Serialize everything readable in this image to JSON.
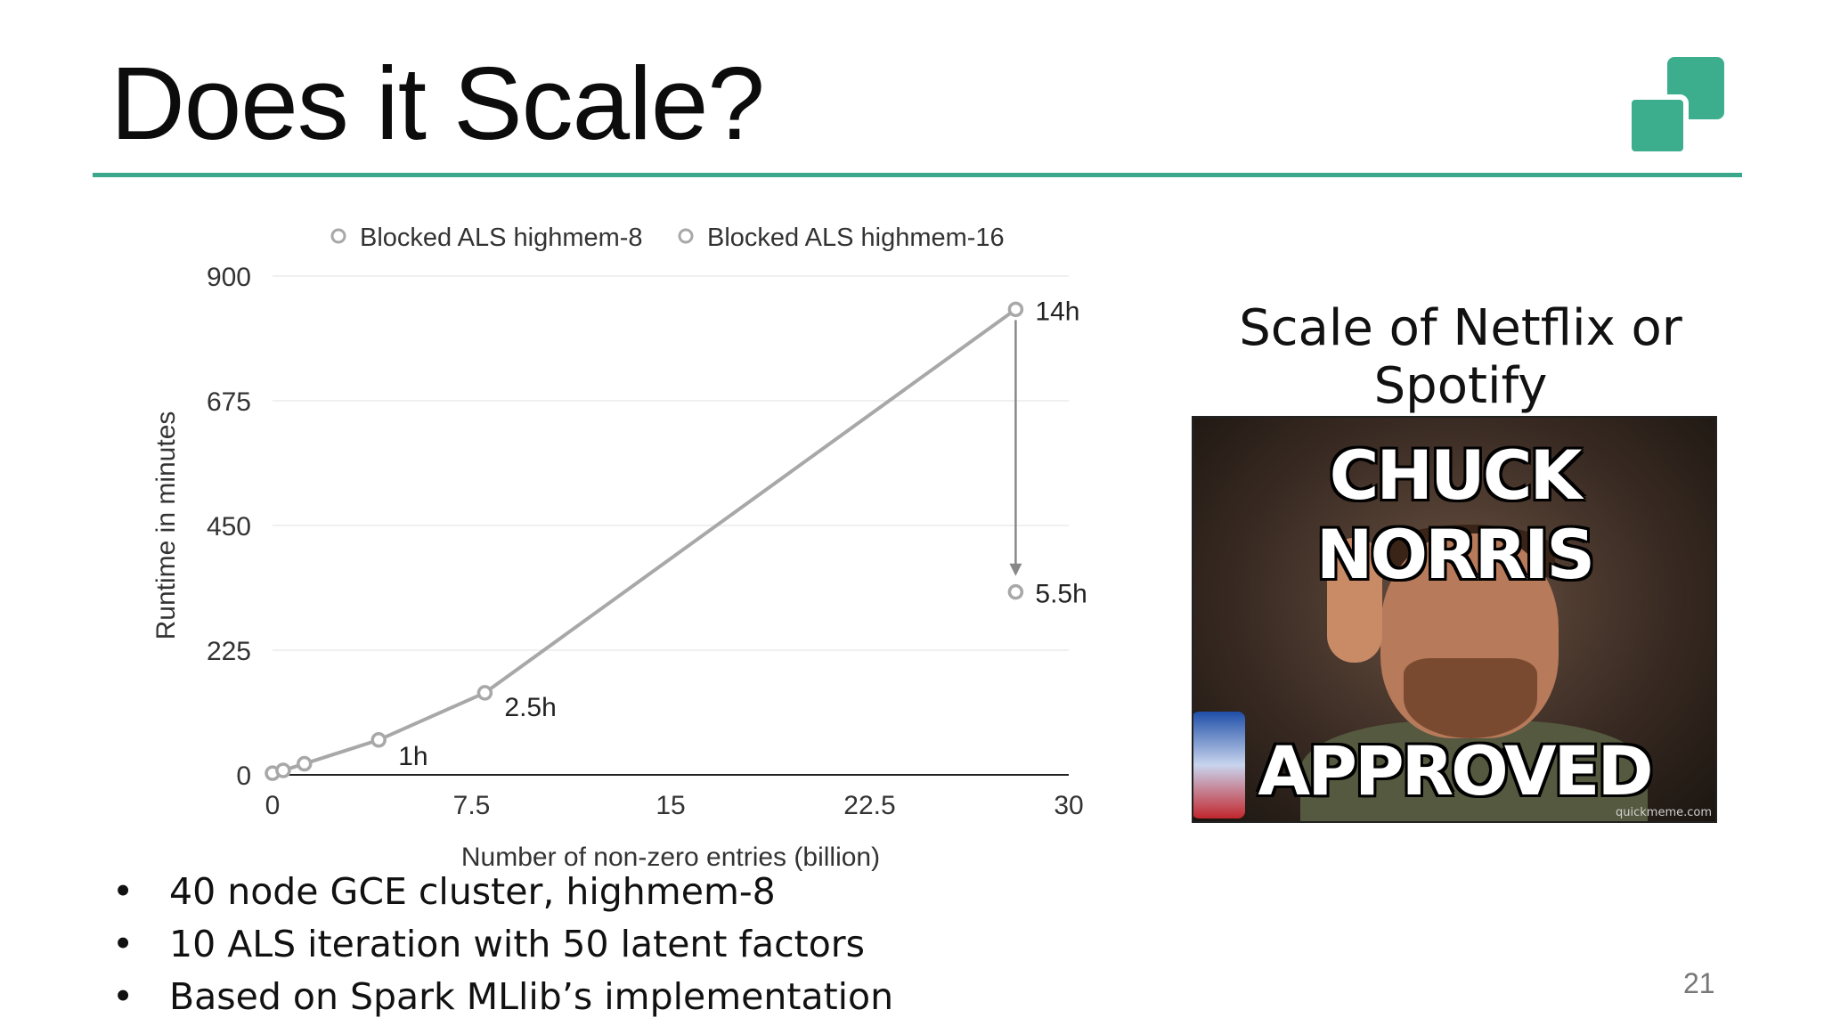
{
  "slide": {
    "title": "Does it Scale?",
    "side_label": "Scale of Netflix or Spotify",
    "page_number": "21",
    "accent_color": "#3aa88c",
    "logo_icon": "overlapping-squares-logo-icon"
  },
  "meme": {
    "top_text": "CHUCK NORRIS",
    "bottom_text": "APPROVED",
    "watermark": "quickmeme.com"
  },
  "bullets": [
    "40 node GCE cluster, highmem-8",
    "10 ALS iteration with 50 latent factors",
    "Based on Spark MLlib’s implementation"
  ],
  "bullet_symbol": "•",
  "chart_data": {
    "type": "line",
    "xlabel": "Number of non-zero entries (billion)",
    "ylabel": "Runtime in minutes",
    "xlim": [
      0,
      30
    ],
    "ylim": [
      0,
      900
    ],
    "xticks": [
      "0",
      "7.5",
      "15",
      "22.5",
      "30"
    ],
    "yticks": [
      "0",
      "225",
      "450",
      "675",
      "900"
    ],
    "grid": true,
    "legend_position": "top",
    "series": [
      {
        "name": "Blocked ALS highmem-8",
        "color": "#a8a8a8",
        "points": [
          {
            "x": 0.0,
            "y": 3
          },
          {
            "x": 0.4,
            "y": 8
          },
          {
            "x": 1.2,
            "y": 20
          },
          {
            "x": 4.0,
            "y": 63
          },
          {
            "x": 8.0,
            "y": 148
          },
          {
            "x": 28.0,
            "y": 840
          }
        ]
      },
      {
        "name": "Blocked ALS highmem-16",
        "color": "#a8a8a8",
        "points": [
          {
            "x": 28.0,
            "y": 330
          }
        ]
      }
    ],
    "annotations": [
      {
        "text": "1h",
        "x": 4.0,
        "y": 63
      },
      {
        "text": "2.5h",
        "x": 8.0,
        "y": 148
      },
      {
        "text": "14h",
        "x": 28.0,
        "y": 840
      },
      {
        "text": "5.5h",
        "x": 28.0,
        "y": 330
      }
    ],
    "arrow": {
      "x": 28.0,
      "from_y": 840,
      "to_y": 362
    }
  }
}
